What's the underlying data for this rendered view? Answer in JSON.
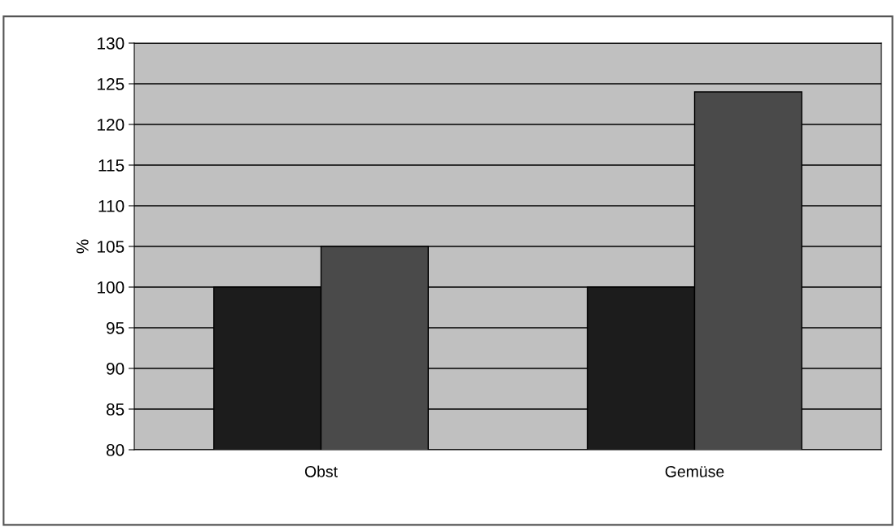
{
  "chart_data": {
    "type": "bar",
    "ylabel": "%",
    "categories": [
      "Obst",
      "Gemüse"
    ],
    "series": [
      {
        "color": "#1c1c1c",
        "values": [
          100,
          100
        ]
      },
      {
        "color": "#4a4a4a",
        "values": [
          105,
          124
        ]
      }
    ],
    "ylim": [
      80,
      130
    ],
    "yticks": [
      80,
      85,
      90,
      95,
      100,
      105,
      110,
      115,
      120,
      125,
      130
    ],
    "grid": "y",
    "legend": false
  }
}
